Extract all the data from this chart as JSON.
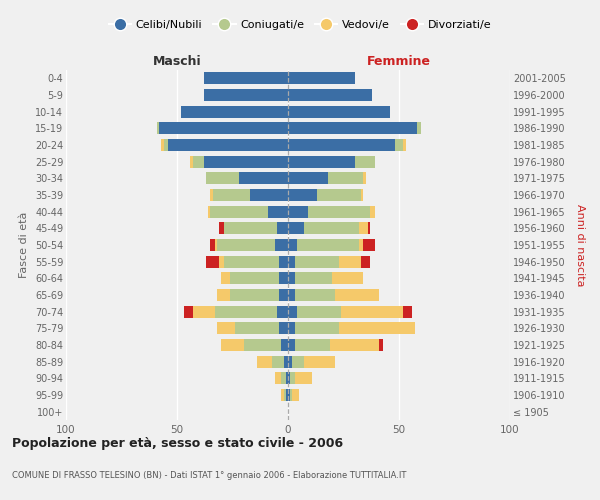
{
  "age_groups": [
    "100+",
    "95-99",
    "90-94",
    "85-89",
    "80-84",
    "75-79",
    "70-74",
    "65-69",
    "60-64",
    "55-59",
    "50-54",
    "45-49",
    "40-44",
    "35-39",
    "30-34",
    "25-29",
    "20-24",
    "15-19",
    "10-14",
    "5-9",
    "0-4"
  ],
  "birth_years": [
    "≤ 1905",
    "1906-1910",
    "1911-1915",
    "1916-1920",
    "1921-1925",
    "1926-1930",
    "1931-1935",
    "1936-1940",
    "1941-1945",
    "1946-1950",
    "1951-1955",
    "1956-1960",
    "1961-1965",
    "1966-1970",
    "1971-1975",
    "1976-1980",
    "1981-1985",
    "1986-1990",
    "1991-1995",
    "1996-2000",
    "2001-2005"
  ],
  "male_celibi": [
    0,
    1,
    1,
    2,
    3,
    4,
    5,
    4,
    4,
    4,
    6,
    5,
    9,
    17,
    22,
    38,
    54,
    58,
    48,
    38,
    38
  ],
  "male_coniugati": [
    0,
    1,
    2,
    5,
    17,
    20,
    28,
    22,
    22,
    25,
    26,
    24,
    26,
    17,
    15,
    5,
    2,
    1,
    0,
    0,
    0
  ],
  "male_vedovi": [
    0,
    1,
    3,
    7,
    10,
    8,
    10,
    6,
    4,
    2,
    1,
    0,
    1,
    1,
    0,
    1,
    1,
    0,
    0,
    0,
    0
  ],
  "male_divorziati": [
    0,
    0,
    0,
    0,
    0,
    0,
    4,
    0,
    0,
    6,
    2,
    2,
    0,
    0,
    0,
    0,
    0,
    0,
    0,
    0,
    0
  ],
  "female_nubili": [
    0,
    1,
    1,
    2,
    3,
    3,
    4,
    3,
    3,
    3,
    4,
    7,
    9,
    13,
    18,
    30,
    48,
    58,
    46,
    38,
    30
  ],
  "female_coniugate": [
    0,
    1,
    2,
    5,
    16,
    20,
    20,
    18,
    17,
    20,
    28,
    25,
    28,
    20,
    16,
    9,
    4,
    2,
    0,
    0,
    0
  ],
  "female_vedove": [
    0,
    3,
    8,
    14,
    22,
    34,
    28,
    20,
    14,
    10,
    2,
    4,
    2,
    1,
    1,
    0,
    1,
    0,
    0,
    0,
    0
  ],
  "female_divorziate": [
    0,
    0,
    0,
    0,
    2,
    0,
    4,
    0,
    0,
    4,
    5,
    1,
    0,
    0,
    0,
    0,
    0,
    0,
    0,
    0,
    0
  ],
  "color_celibi": "#3b6ea5",
  "color_coniugati": "#b5c98e",
  "color_vedovi": "#f5c96a",
  "color_divorziati": "#cc2222",
  "xlim": 100,
  "title": "Popolazione per età, sesso e stato civile - 2006",
  "subtitle": "COMUNE DI FRASSO TELESINO (BN) - Dati ISTAT 1° gennaio 2006 - Elaborazione TUTTITALIA.IT",
  "ylabel_left": "Fasce di età",
  "ylabel_right": "Anni di nascita",
  "label_maschi": "Maschi",
  "label_femmine": "Femmine",
  "legend_labels": [
    "Celibi/Nubili",
    "Coniugati/e",
    "Vedovi/e",
    "Divorziati/e"
  ],
  "bg_color": "#f0f0f0"
}
